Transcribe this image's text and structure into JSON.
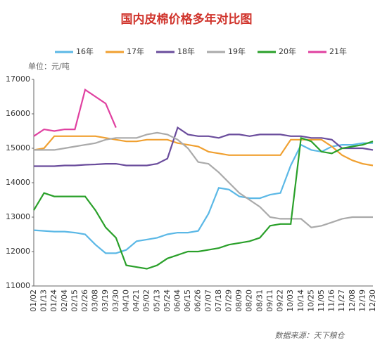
{
  "chart_data": {
    "type": "line",
    "title": "国内皮棉价格多年对比图",
    "y_label": "单位：元/吨",
    "source": "数据来源：天下粮仓",
    "categories": [
      "01/02",
      "01/13",
      "01/24",
      "02/04",
      "02/15",
      "02/26",
      "03/08",
      "03/19",
      "03/30",
      "04/10",
      "04/21",
      "05/02",
      "05/13",
      "05/24",
      "06/04",
      "06/15",
      "06/26",
      "07/07",
      "07/18",
      "07/29",
      "08/09",
      "08/20",
      "08/31",
      "09/11",
      "09/22",
      "10/03",
      "10/14",
      "10/25",
      "11/05",
      "11/16",
      "11/27",
      "12/08",
      "12/19",
      "12/30"
    ],
    "ylim": [
      11000,
      17000
    ],
    "yticks": [
      11000,
      12000,
      13000,
      14000,
      15000,
      16000,
      17000
    ],
    "grid": false,
    "legend": "top",
    "series": [
      {
        "name": "16年",
        "color": "#5bb8e6",
        "values": [
          12620,
          12600,
          12580,
          12580,
          12550,
          12500,
          12200,
          11950,
          11950,
          12050,
          12300,
          12350,
          12400,
          12500,
          12550,
          12550,
          12600,
          13100,
          13850,
          13800,
          13600,
          13550,
          13550,
          13650,
          13700,
          14500,
          15100,
          14950,
          14900,
          15050,
          15100,
          15100,
          15150,
          15150
        ]
      },
      {
        "name": "17年",
        "color": "#f0a030",
        "values": [
          14950,
          15000,
          15350,
          15350,
          15350,
          15350,
          15350,
          15300,
          15250,
          15200,
          15200,
          15250,
          15250,
          15250,
          15150,
          15100,
          15050,
          14900,
          14850,
          14800,
          14800,
          14800,
          14800,
          14800,
          14800,
          15250,
          15250,
          15250,
          15250,
          15050,
          14800,
          14650,
          14550,
          14500
        ]
      },
      {
        "name": "18年",
        "color": "#6a4c9c",
        "values": [
          14480,
          14480,
          14480,
          14500,
          14500,
          14520,
          14530,
          14550,
          14550,
          14500,
          14500,
          14500,
          14550,
          14700,
          15600,
          15400,
          15350,
          15350,
          15300,
          15400,
          15400,
          15350,
          15400,
          15400,
          15400,
          15350,
          15350,
          15300,
          15300,
          15250,
          15000,
          15000,
          15000,
          14950
        ]
      },
      {
        "name": "19年",
        "color": "#aaaaaa",
        "values": [
          14950,
          14950,
          14950,
          15000,
          15050,
          15100,
          15150,
          15250,
          15300,
          15300,
          15300,
          15400,
          15450,
          15400,
          15250,
          15000,
          14600,
          14550,
          14300,
          14000,
          13700,
          13500,
          13300,
          13000,
          12950,
          12950,
          12950,
          12700,
          12750,
          12850,
          12950,
          13000,
          13000,
          13000
        ]
      },
      {
        "name": "20年",
        "color": "#2aa02a",
        "values": [
          13200,
          13700,
          13600,
          13600,
          13600,
          13600,
          13200,
          12700,
          12400,
          11600,
          11550,
          11500,
          11600,
          11800,
          11900,
          12000,
          12000,
          12050,
          12100,
          12200,
          12250,
          12300,
          12400,
          12750,
          12800,
          12800,
          15300,
          15200,
          14900,
          14850,
          15000,
          15050,
          15100,
          15200
        ]
      },
      {
        "name": "21年",
        "color": "#e040a0",
        "values": [
          15350,
          15550,
          15500,
          15550,
          15550,
          16700,
          16500,
          16300,
          15600,
          null,
          null,
          null,
          null,
          null,
          null,
          null,
          null,
          null,
          null,
          null,
          null,
          null,
          null,
          null,
          null,
          null,
          null,
          null,
          null,
          null,
          null,
          null,
          null,
          null
        ]
      }
    ]
  }
}
